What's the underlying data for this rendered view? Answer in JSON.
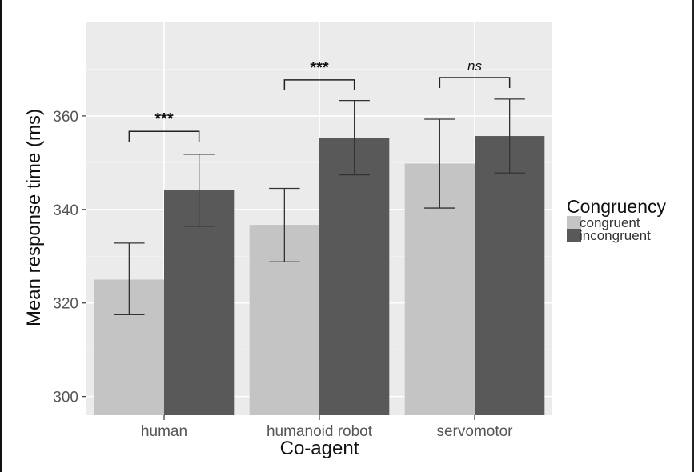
{
  "chart_data": {
    "type": "bar",
    "title": "",
    "xlabel": "Co-agent",
    "ylabel": "Mean response time (ms)",
    "categories": [
      "human",
      "humanoid robot",
      "servomotor"
    ],
    "y_ticks": [
      "300",
      "320",
      "340",
      "360"
    ],
    "ylim": [
      296,
      380
    ],
    "grid": true,
    "background": "#ebebeb",
    "legend": {
      "title": "Congruency",
      "position": "right"
    },
    "series": [
      {
        "name": "congruent",
        "color": "#c4c4c4",
        "values": [
          325,
          336.7,
          349.8
        ],
        "error_low": [
          317.5,
          328.8,
          340.3
        ],
        "error_high": [
          332.8,
          344.5,
          359.3
        ]
      },
      {
        "name": "incongruent",
        "color": "#595959",
        "values": [
          344.1,
          355.3,
          355.7
        ],
        "error_low": [
          336.4,
          347.4,
          347.8
        ],
        "error_high": [
          351.8,
          363.3,
          363.6
        ]
      }
    ],
    "annotations": [
      {
        "category": "human",
        "text": "***",
        "y": 356.7,
        "italic": false
      },
      {
        "category": "humanoid robot",
        "text": "***",
        "y": 367.7,
        "italic": false
      },
      {
        "category": "servomotor",
        "text": "ns",
        "y": 368.2,
        "italic": true
      }
    ]
  }
}
